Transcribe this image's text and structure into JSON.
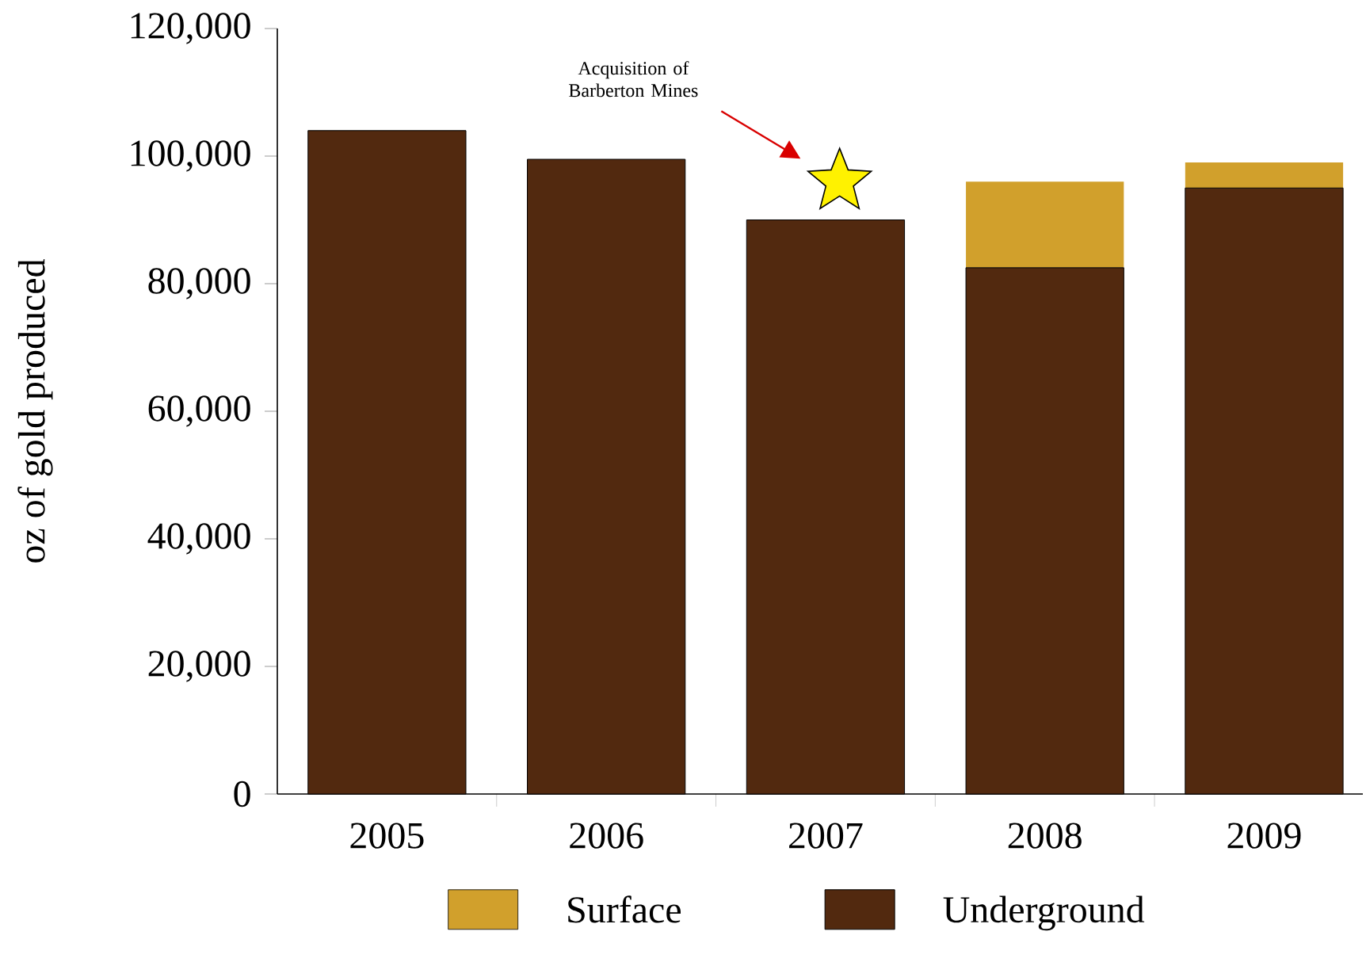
{
  "chart_data": {
    "type": "bar",
    "stacked": true,
    "categories": [
      "2005",
      "2006",
      "2007",
      "2008",
      "2009"
    ],
    "ylabel": "oz of gold produced",
    "series": [
      {
        "name": "Underground",
        "color": "#52290f",
        "values": [
          104000,
          99500,
          90000,
          82500,
          95000
        ]
      },
      {
        "name": "Surface",
        "color": "#d1a02c",
        "values": [
          0,
          0,
          0,
          13500,
          4000
        ]
      }
    ],
    "ylim": [
      0,
      120000
    ],
    "yticks": [
      {
        "value": 0,
        "label": "0"
      },
      {
        "value": 20000,
        "label": "20,000"
      },
      {
        "value": 40000,
        "label": "40,000"
      },
      {
        "value": 60000,
        "label": "60,000"
      },
      {
        "value": 80000,
        "label": "80,000"
      },
      {
        "value": 100000,
        "label": "100,000"
      },
      {
        "value": 120000,
        "label": "120,000"
      }
    ],
    "annotations": [
      "Acquisition of Barberton Mines"
    ],
    "legend": "bottom",
    "grid": false
  }
}
